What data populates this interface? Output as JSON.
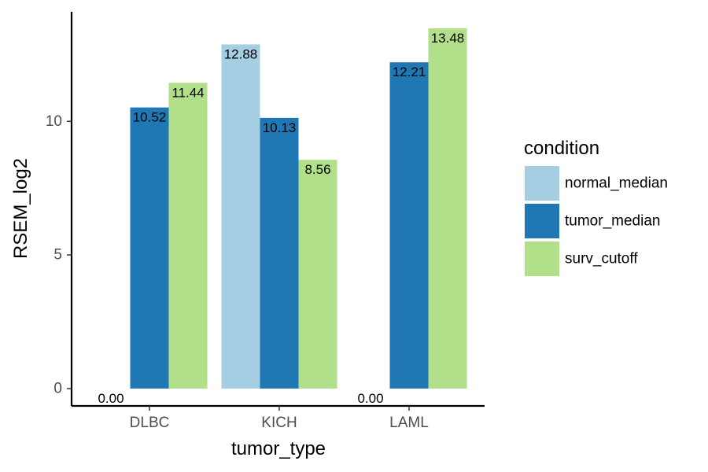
{
  "chart_data": {
    "type": "bar",
    "categories": [
      "DLBC",
      "KICH",
      "LAML"
    ],
    "series": [
      {
        "name": "normal_median",
        "color": "#a6cee3",
        "values": [
          0.0,
          12.88,
          0.0
        ]
      },
      {
        "name": "tumor_median",
        "color": "#1f78b4",
        "values": [
          10.52,
          10.13,
          12.21
        ]
      },
      {
        "name": "surv_cutoff",
        "color": "#b2df8a",
        "values": [
          11.44,
          8.56,
          13.48
        ]
      }
    ],
    "data_labels": [
      [
        "0.00",
        "12.88",
        "0.00"
      ],
      [
        "10.52",
        "10.13",
        "12.21"
      ],
      [
        "11.44",
        "8.56",
        "13.48"
      ]
    ],
    "xlabel": "tumor_type",
    "ylabel": "RSEM_log2",
    "y_ticks": [
      0,
      5,
      10
    ],
    "ylim": [
      -0.65,
      14.1
    ],
    "grid": false,
    "legend": {
      "title": "condition",
      "position": "right"
    }
  }
}
